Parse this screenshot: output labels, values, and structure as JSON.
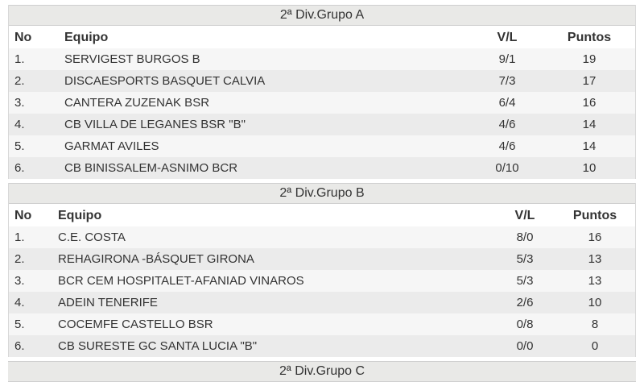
{
  "groups": [
    {
      "title": "2ª Div.Grupo A",
      "header": [
        "No",
        "Equipo",
        "V/L",
        "Puntos"
      ],
      "rows": [
        [
          "1.",
          "SERVIGEST BURGOS B",
          "9/1",
          "19"
        ],
        [
          "2.",
          "DISCAESPORTS BASQUET CALVIA",
          "7/3",
          "17"
        ],
        [
          "3.",
          "CANTERA ZUZENAK BSR",
          "6/4",
          "16"
        ],
        [
          "4.",
          "CB VILLA DE LEGANES BSR \"B\"",
          "4/6",
          "14"
        ],
        [
          "5.",
          "GARMAT AVILES",
          "4/6",
          "14"
        ],
        [
          "6.",
          "CB BINISSALEM-ASNIMO BCR",
          "0/10",
          "10"
        ]
      ]
    },
    {
      "title": "2ª Div.Grupo B",
      "header": [
        "No",
        "Equipo",
        "V/L",
        "Puntos"
      ],
      "rows": [
        [
          "1.",
          "C.E. COSTA",
          "8/0",
          "16"
        ],
        [
          "2.",
          "REHAGIRONA -BÁSQUET GIRONA",
          "5/3",
          "13"
        ],
        [
          "3.",
          "BCR CEM HOSPITALET-AFANIAD VINAROS",
          "5/3",
          "13"
        ],
        [
          "4.",
          "ADEIN TENERIFE",
          "2/6",
          "10"
        ],
        [
          "5.",
          "COCEMFE CASTELLO BSR",
          "0/8",
          "8"
        ],
        [
          "6.",
          "CB SURESTE GC SANTA LUCIA \"B\"",
          "0/0",
          "0"
        ]
      ]
    },
    {
      "title": "2ª Div.Grupo C"
    }
  ]
}
